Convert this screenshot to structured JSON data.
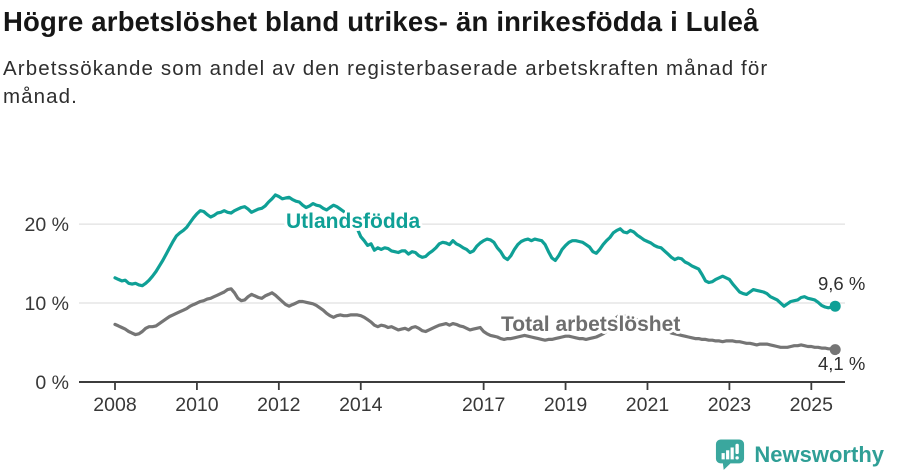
{
  "header": {
    "title": "Högre arbetslöshet bland utrikes- än inrikesfödda i Luleå",
    "subtitle": "Arbetssökande som andel av den registerbaserade arbetskraften månad för månad."
  },
  "chart_data": {
    "type": "line",
    "title": "Högre arbetslöshet bland utrikes- än inrikesfödda i Luleå",
    "subtitle": "Arbetssökande som andel av den registerbaserade arbetskraften månad för månad.",
    "grid": true,
    "legend_position": "inline-labels",
    "x_axis": {
      "start_year": 2008,
      "step": "monthly",
      "ticks": [
        2008,
        2010,
        2012,
        2014,
        2017,
        2019,
        2021,
        2023,
        2025
      ],
      "range": [
        2008.0,
        2025.67
      ]
    },
    "y_axis": {
      "ticks": [
        {
          "value": 0,
          "label": "0 %"
        },
        {
          "value": 10,
          "label": "10 %"
        },
        {
          "value": 20,
          "label": "20 %"
        }
      ],
      "ylim": [
        0,
        25
      ],
      "unit": "%"
    },
    "style": {
      "grid_color": "#d9d9d9",
      "axis_color": "#3c3c3c",
      "tick_color": "#383838",
      "end_label_color": "#2f2f2f"
    },
    "series": [
      {
        "name": "Utlandsfödda",
        "color": "#0fa096",
        "end_label": "9,6 %",
        "last_value": 9.6,
        "values": [
          13.2,
          13.0,
          12.8,
          12.9,
          12.5,
          12.4,
          12.5,
          12.3,
          12.2,
          12.5,
          12.9,
          13.4,
          14.0,
          14.7,
          15.4,
          16.2,
          17.0,
          17.8,
          18.5,
          18.9,
          19.2,
          19.6,
          20.2,
          20.8,
          21.3,
          21.7,
          21.6,
          21.2,
          20.9,
          21.1,
          21.4,
          21.5,
          21.7,
          21.5,
          21.4,
          21.7,
          21.9,
          22.1,
          22.2,
          21.9,
          21.5,
          21.7,
          21.9,
          22.0,
          22.3,
          22.8,
          23.2,
          23.7,
          23.5,
          23.2,
          23.3,
          23.4,
          23.1,
          22.9,
          22.8,
          22.4,
          22.1,
          22.3,
          22.6,
          22.4,
          22.3,
          22.0,
          21.8,
          22.1,
          22.4,
          22.2,
          21.9,
          21.6,
          21.3,
          21.0,
          20.4,
          19.4,
          18.4,
          17.9,
          17.3,
          17.5,
          16.7,
          17.0,
          16.8,
          17.0,
          16.9,
          16.6,
          16.5,
          16.4,
          16.6,
          16.6,
          16.2,
          16.5,
          16.4,
          16.0,
          15.8,
          15.9,
          16.3,
          16.6,
          17.0,
          17.5,
          17.7,
          17.6,
          17.4,
          17.9,
          17.5,
          17.3,
          17.0,
          16.8,
          16.4,
          16.6,
          17.2,
          17.6,
          17.9,
          18.1,
          18.0,
          17.7,
          17.0,
          16.5,
          15.8,
          15.5,
          16.0,
          16.8,
          17.4,
          17.8,
          18.0,
          18.1,
          17.9,
          18.1,
          18.0,
          17.9,
          17.4,
          16.5,
          15.7,
          15.4,
          16.0,
          16.8,
          17.3,
          17.7,
          17.9,
          17.9,
          17.8,
          17.7,
          17.4,
          17.1,
          16.5,
          16.3,
          16.8,
          17.4,
          17.9,
          18.3,
          18.9,
          19.2,
          19.4,
          19.0,
          18.9,
          19.2,
          19.0,
          18.6,
          18.3,
          18.0,
          17.8,
          17.6,
          17.3,
          17.1,
          17.0,
          16.6,
          16.2,
          15.8,
          15.5,
          15.7,
          15.6,
          15.2,
          15.0,
          14.7,
          14.5,
          14.3,
          13.6,
          12.8,
          12.6,
          12.7,
          13.0,
          13.2,
          13.4,
          13.2,
          13.0,
          12.4,
          11.9,
          11.4,
          11.2,
          11.1,
          11.4,
          11.7,
          11.6,
          11.5,
          11.4,
          11.2,
          10.8,
          10.6,
          10.4,
          10.0,
          9.6,
          9.9,
          10.2,
          10.3,
          10.4,
          10.7,
          10.8,
          10.6,
          10.5,
          10.4,
          10.1,
          9.7,
          9.5,
          9.4,
          9.5,
          9.6
        ]
      },
      {
        "name": "Total arbetslöshet",
        "color": "#757575",
        "end_label": "4,1 %",
        "last_value": 4.1,
        "values": [
          7.3,
          7.1,
          6.9,
          6.7,
          6.4,
          6.2,
          6.0,
          6.1,
          6.4,
          6.8,
          7.0,
          7.0,
          7.1,
          7.4,
          7.7,
          8.0,
          8.3,
          8.5,
          8.7,
          8.9,
          9.1,
          9.3,
          9.6,
          9.8,
          10.0,
          10.2,
          10.3,
          10.5,
          10.6,
          10.8,
          11.0,
          11.2,
          11.4,
          11.7,
          11.8,
          11.3,
          10.6,
          10.3,
          10.4,
          10.8,
          11.1,
          10.9,
          10.7,
          10.6,
          10.9,
          11.1,
          11.3,
          11.0,
          10.6,
          10.2,
          9.8,
          9.6,
          9.8,
          10.0,
          10.2,
          10.2,
          10.1,
          10.0,
          9.9,
          9.7,
          9.4,
          9.1,
          8.7,
          8.4,
          8.2,
          8.4,
          8.5,
          8.4,
          8.4,
          8.5,
          8.5,
          8.5,
          8.4,
          8.2,
          7.9,
          7.6,
          7.2,
          7.0,
          7.2,
          7.1,
          6.9,
          7.0,
          6.8,
          6.6,
          6.7,
          6.8,
          6.6,
          6.9,
          7.0,
          6.8,
          6.5,
          6.4,
          6.6,
          6.8,
          7.0,
          7.2,
          7.3,
          7.4,
          7.2,
          7.4,
          7.3,
          7.1,
          7.0,
          6.8,
          6.6,
          6.7,
          6.8,
          6.9,
          6.4,
          6.1,
          5.9,
          5.8,
          5.7,
          5.5,
          5.4,
          5.5,
          5.5,
          5.6,
          5.7,
          5.8,
          5.9,
          5.8,
          5.7,
          5.6,
          5.5,
          5.4,
          5.3,
          5.4,
          5.4,
          5.5,
          5.6,
          5.7,
          5.8,
          5.8,
          5.7,
          5.6,
          5.5,
          5.5,
          5.4,
          5.5,
          5.6,
          5.7,
          5.9,
          6.1,
          6.4,
          6.8,
          7.6,
          8.2,
          8.5,
          8.4,
          8.3,
          8.2,
          8.0,
          7.9,
          7.7,
          7.5,
          7.4,
          7.2,
          7.0,
          6.9,
          6.7,
          6.5,
          6.4,
          6.2,
          6.1,
          6.0,
          5.9,
          5.8,
          5.7,
          5.6,
          5.5,
          5.5,
          5.4,
          5.4,
          5.3,
          5.3,
          5.2,
          5.2,
          5.1,
          5.2,
          5.2,
          5.2,
          5.1,
          5.1,
          5.0,
          4.9,
          4.9,
          4.8,
          4.7,
          4.8,
          4.8,
          4.8,
          4.7,
          4.6,
          4.5,
          4.4,
          4.4,
          4.4,
          4.5,
          4.6,
          4.6,
          4.7,
          4.6,
          4.5,
          4.5,
          4.4,
          4.4,
          4.3,
          4.3,
          4.2,
          4.2,
          4.1
        ]
      }
    ]
  },
  "footer": {
    "brand": "Newsworthy",
    "brand_color": "#2f9f96",
    "icon": "newsworthy-speech-bubble-bar-chart-icon"
  }
}
